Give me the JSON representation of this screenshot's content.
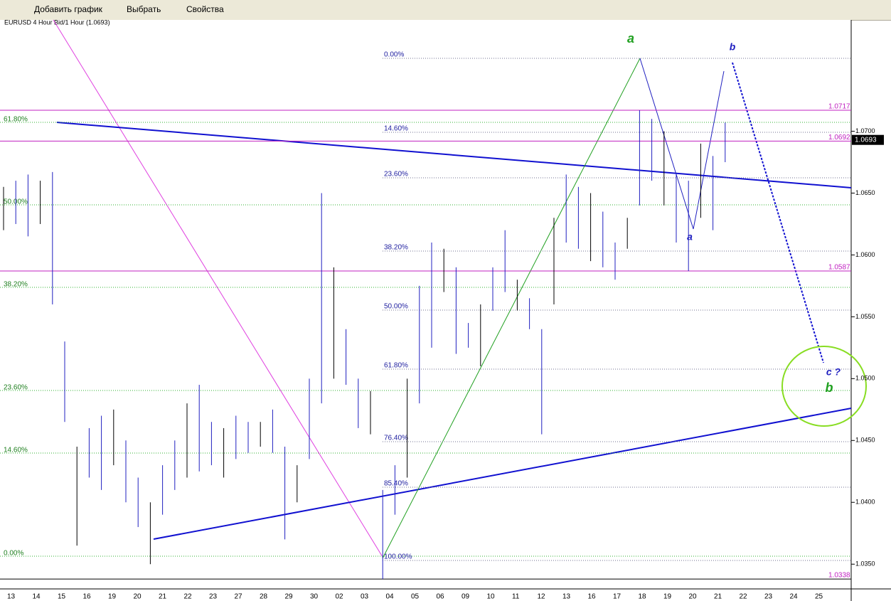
{
  "toolbar": {
    "add_chart": "Добавить график",
    "select": "Выбрать",
    "properties": "Свойства"
  },
  "chart": {
    "title": "EURUSD 4 Hour Bid/1 Hour (1.0693)",
    "ylim": [
      1.033,
      1.079
    ],
    "yticks": [
      {
        "value": 1.07,
        "label": "1.0700"
      },
      {
        "value": 1.065,
        "label": "1.0650"
      },
      {
        "value": 1.06,
        "label": "1.0600"
      },
      {
        "value": 1.055,
        "label": "1.0550"
      },
      {
        "value": 1.05,
        "label": "1.0500"
      },
      {
        "value": 1.045,
        "label": "1.0450"
      },
      {
        "value": 1.04,
        "label": "1.0400"
      },
      {
        "value": 1.035,
        "label": "1.0350"
      }
    ],
    "dates": [
      "13",
      "14",
      "15",
      "16",
      "19",
      "20",
      "21",
      "22",
      "23",
      "27",
      "28",
      "29",
      "30",
      "02",
      "03",
      "04",
      "05",
      "06",
      "09",
      "10",
      "11",
      "12",
      "13",
      "16",
      "17",
      "18",
      "19",
      "20",
      "21",
      "22",
      "23",
      "24",
      "25"
    ],
    "price_lines": [
      {
        "value": 1.0717,
        "label": "1.0717"
      },
      {
        "value": 1.0692,
        "label": "1.0692"
      },
      {
        "value": 1.0587,
        "label": "1.0587"
      },
      {
        "value": 1.0338,
        "label": "1.0338"
      }
    ],
    "current_price": {
      "value": 1.0693,
      "label": "1.0693"
    },
    "left_fib": [
      "61.80%",
      "50.00%",
      "38.20%",
      "23.60%",
      "14.60%",
      "0.00%"
    ],
    "mid_fib": [
      "0.00%",
      "14.60%",
      "23.60%",
      "38.20%",
      "50.00%",
      "61.80%",
      "76.40%",
      "85.40%",
      "100.00%"
    ],
    "annotations": [
      "a",
      "b",
      "a",
      "c ?",
      "b"
    ],
    "bars": [
      [
        1.062,
        1.0655
      ],
      [
        1.0625,
        1.066
      ],
      [
        1.0615,
        1.0665
      ],
      [
        1.0625,
        1.066
      ],
      [
        1.056,
        1.0667
      ],
      [
        1.0465,
        1.053
      ],
      [
        1.0365,
        1.0445
      ],
      [
        1.042,
        1.046
      ],
      [
        1.041,
        1.047
      ],
      [
        1.043,
        1.0475
      ],
      [
        1.04,
        1.045
      ],
      [
        1.038,
        1.042
      ],
      [
        1.035,
        1.04
      ],
      [
        1.039,
        1.043
      ],
      [
        1.041,
        1.045
      ],
      [
        1.042,
        1.048
      ],
      [
        1.0425,
        1.0495
      ],
      [
        1.043,
        1.0465
      ],
      [
        1.042,
        1.046
      ],
      [
        1.0435,
        1.047
      ],
      [
        1.044,
        1.0465
      ],
      [
        1.0445,
        1.0465
      ],
      [
        1.044,
        1.0475
      ],
      [
        1.037,
        1.0445
      ],
      [
        1.04,
        1.043
      ],
      [
        1.0435,
        1.05
      ],
      [
        1.048,
        1.065
      ],
      [
        1.05,
        1.059
      ],
      [
        1.0495,
        1.054
      ],
      [
        1.046,
        1.05
      ],
      [
        1.0455,
        1.049
      ],
      [
        1.0338,
        1.041
      ],
      [
        1.039,
        1.043
      ],
      [
        1.042,
        1.05
      ],
      [
        1.048,
        1.0575
      ],
      [
        1.0525,
        1.061
      ],
      [
        1.057,
        1.0605
      ],
      [
        1.052,
        1.059
      ],
      [
        1.0525,
        1.0545
      ],
      [
        1.051,
        1.056
      ],
      [
        1.0555,
        1.059
      ],
      [
        1.057,
        1.062
      ],
      [
        1.0555,
        1.058
      ],
      [
        1.054,
        1.0565
      ],
      [
        1.0455,
        1.054
      ],
      [
        1.056,
        1.063
      ],
      [
        1.061,
        1.0665
      ],
      [
        1.0605,
        1.0655
      ],
      [
        1.0595,
        1.065
      ],
      [
        1.059,
        1.0635
      ],
      [
        1.058,
        1.061
      ],
      [
        1.0605,
        1.063
      ],
      [
        1.064,
        1.0717
      ],
      [
        1.066,
        1.071
      ],
      [
        1.064,
        1.07
      ],
      [
        1.061,
        1.0665
      ],
      [
        1.0587,
        1.066
      ],
      [
        1.063,
        1.069
      ],
      [
        1.062,
        1.068
      ],
      [
        1.0675,
        1.0707
      ]
    ]
  }
}
